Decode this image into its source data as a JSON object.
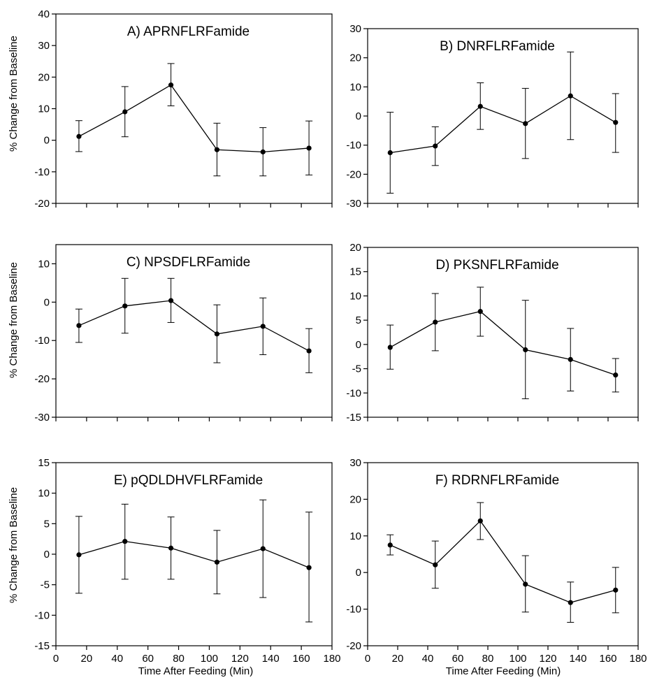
{
  "figure": {
    "ylabel": "% Change from Baseline",
    "xlabel": "Time After Feeding (Min)"
  },
  "chart_data": [
    {
      "type": "line",
      "title": "A) APRNFLRFamide",
      "x": [
        15,
        45,
        75,
        105,
        135,
        165
      ],
      "y": [
        1.2,
        9.0,
        17.5,
        -3.0,
        -3.7,
        -2.5
      ],
      "err_upper": [
        6.2,
        17.0,
        24.3,
        5.4,
        4.0,
        6.1
      ],
      "err_lower": [
        -3.6,
        1.1,
        10.9,
        -11.3,
        -11.3,
        -11.0
      ],
      "ylim": [
        -20,
        40
      ],
      "yticks": [
        -20,
        -10,
        0,
        10,
        20,
        30,
        40
      ],
      "xlim": [
        0,
        180
      ],
      "xticks": [
        0,
        20,
        40,
        60,
        80,
        100,
        120,
        140,
        160,
        180
      ],
      "show_xtick_labels": false
    },
    {
      "type": "line",
      "title": "B) DNRFLRFamide",
      "x": [
        15,
        45,
        75,
        105,
        135,
        165
      ],
      "y": [
        -12.6,
        -10.3,
        3.3,
        -2.6,
        6.9,
        -2.2
      ],
      "err_upper": [
        1.3,
        -3.7,
        11.4,
        9.5,
        22.0,
        7.7
      ],
      "err_lower": [
        -26.5,
        -17.0,
        -4.6,
        -14.6,
        -8.1,
        -12.5
      ],
      "ylim": [
        -30,
        30
      ],
      "yticks": [
        -30,
        -20,
        -10,
        0,
        10,
        20,
        30
      ],
      "xlim": [
        0,
        180
      ],
      "xticks": [
        0,
        20,
        40,
        60,
        80,
        100,
        120,
        140,
        160,
        180
      ],
      "show_xtick_labels": false
    },
    {
      "type": "line",
      "title": "C) NPSDFLRFamide",
      "x": [
        15,
        45,
        75,
        105,
        135,
        165
      ],
      "y": [
        -6.1,
        -1.0,
        0.4,
        -8.3,
        -6.3,
        -12.7
      ],
      "err_upper": [
        -1.8,
        6.2,
        6.2,
        -0.7,
        1.1,
        -6.9
      ],
      "err_lower": [
        -10.5,
        -8.1,
        -5.3,
        -15.8,
        -13.7,
        -18.4
      ],
      "ylim": [
        -30,
        15
      ],
      "yticks": [
        -30,
        -20,
        -10,
        0,
        10
      ],
      "xlim": [
        0,
        180
      ],
      "xticks": [
        0,
        20,
        40,
        60,
        80,
        100,
        120,
        140,
        160,
        180
      ],
      "show_xtick_labels": false
    },
    {
      "type": "line",
      "title": "D) PKSNFLRFamide",
      "x": [
        15,
        45,
        75,
        105,
        135,
        165
      ],
      "y": [
        -0.6,
        4.6,
        6.8,
        -1.1,
        -3.1,
        -6.3
      ],
      "err_upper": [
        4.0,
        10.5,
        11.8,
        9.1,
        3.3,
        -2.9
      ],
      "err_lower": [
        -5.1,
        -1.3,
        1.7,
        -11.2,
        -9.6,
        -9.8
      ],
      "ylim": [
        -15,
        20
      ],
      "yticks": [
        -15,
        -10,
        -5,
        0,
        5,
        10,
        15,
        20
      ],
      "xlim": [
        0,
        180
      ],
      "xticks": [
        0,
        20,
        40,
        60,
        80,
        100,
        120,
        140,
        160,
        180
      ],
      "show_xtick_labels": false
    },
    {
      "type": "line",
      "title": "E) pQDLDHVFLRFamide",
      "x": [
        15,
        45,
        75,
        105,
        135,
        165
      ],
      "y": [
        -0.1,
        2.1,
        1.0,
        -1.3,
        0.9,
        -2.2
      ],
      "err_upper": [
        6.2,
        8.2,
        6.1,
        3.9,
        8.9,
        6.9
      ],
      "err_lower": [
        -6.4,
        -4.1,
        -4.1,
        -6.5,
        -7.1,
        -11.1
      ],
      "ylim": [
        -15,
        15
      ],
      "yticks": [
        -15,
        -10,
        -5,
        0,
        5,
        10,
        15
      ],
      "xlim": [
        0,
        180
      ],
      "xticks": [
        0,
        20,
        40,
        60,
        80,
        100,
        120,
        140,
        160,
        180
      ],
      "show_xtick_labels": true
    },
    {
      "type": "line",
      "title": "F) RDRNFLRFamide",
      "x": [
        15,
        45,
        75,
        105,
        135,
        165
      ],
      "y": [
        7.5,
        2.1,
        14.1,
        -3.2,
        -8.2,
        -4.8
      ],
      "err_upper": [
        10.3,
        8.6,
        19.1,
        4.6,
        -2.6,
        1.4
      ],
      "err_lower": [
        4.8,
        -4.3,
        9.0,
        -10.8,
        -13.6,
        -11.0
      ],
      "ylim": [
        -20,
        30
      ],
      "yticks": [
        -20,
        -10,
        0,
        10,
        20,
        30
      ],
      "xlim": [
        0,
        180
      ],
      "xticks": [
        0,
        20,
        40,
        60,
        80,
        100,
        120,
        140,
        160,
        180
      ],
      "show_xtick_labels": true
    }
  ]
}
